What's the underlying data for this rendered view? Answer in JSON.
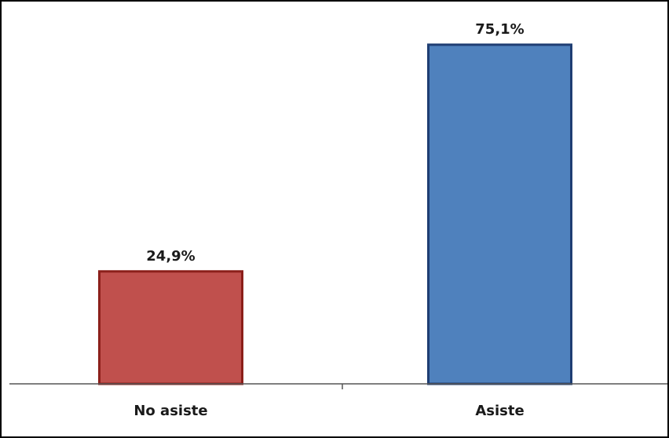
{
  "chart_data": {
    "type": "bar",
    "title": "",
    "xlabel": "",
    "ylabel": "",
    "categories": [
      "No asiste",
      "Asiste"
    ],
    "values": [
      24.9,
      75.1
    ],
    "value_labels": [
      "24,9%",
      "75,1%"
    ],
    "ylim": [
      0,
      85
    ],
    "grid": false,
    "legend": "none",
    "colors": {
      "fill": [
        "#C0504D",
        "#4F81BD"
      ],
      "stroke": [
        "#8C1F1A",
        "#1F3E73"
      ]
    }
  }
}
